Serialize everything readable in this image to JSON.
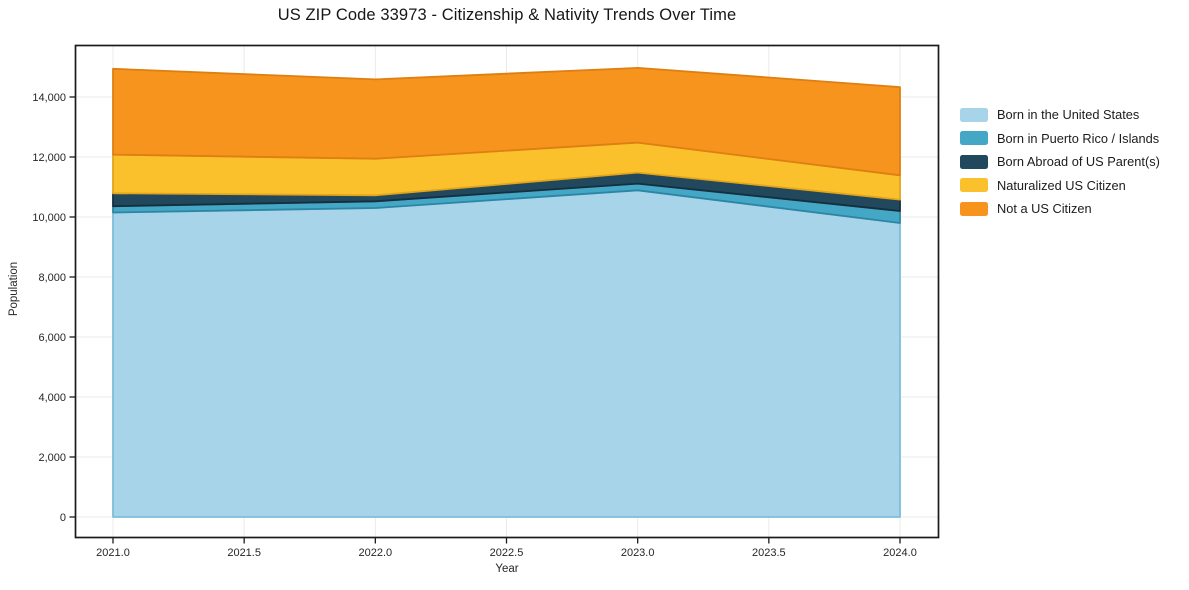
{
  "page": {
    "background": "#ffffff"
  },
  "chart_data": {
    "type": "area",
    "stacked": true,
    "title": "US ZIP Code 33973 - Citizenship & Nativity Trends Over Time",
    "xlabel": "Year",
    "ylabel": "Population",
    "x": [
      2021,
      2022,
      2023,
      2024
    ],
    "series": [
      {
        "name": "Born in the United States",
        "color": "#A7D4E9",
        "edge_color": "#7CBEDB",
        "values": [
          10150,
          10300,
          10890,
          9800
        ]
      },
      {
        "name": "Born in Puerto Rico / Islands",
        "color": "#44A7C6",
        "edge_color": "#2C86A3",
        "values": [
          210,
          225,
          225,
          400
        ]
      },
      {
        "name": "Born Abroad of US Parent(s)",
        "color": "#21485C",
        "edge_color": "#152F3D",
        "values": [
          430,
          200,
          365,
          380
        ]
      },
      {
        "name": "Naturalized US Citizen",
        "color": "#FBC12D",
        "edge_color": "#E2A51B",
        "values": [
          1290,
          1220,
          1000,
          810
        ]
      },
      {
        "name": "Not a US Citizen",
        "color": "#F7941E",
        "edge_color": "#DE7F12",
        "values": [
          2860,
          2640,
          2490,
          2940
        ]
      }
    ],
    "totals": [
      14940,
      14585,
      14970,
      14330
    ],
    "x_ticks": [
      2021.0,
      2021.5,
      2022.0,
      2022.5,
      2023.0,
      2023.5,
      2024.0
    ],
    "x_tick_labels": [
      "2021.0",
      "2021.5",
      "2022.0",
      "2022.5",
      "2023.0",
      "2023.5",
      "2024.0"
    ],
    "y_ticks": [
      0,
      2000,
      4000,
      6000,
      8000,
      10000,
      12000,
      14000
    ],
    "y_tick_labels": [
      "0",
      "2,000",
      "4,000",
      "6,000",
      "8,000",
      "10,000",
      "12,000",
      "14,000"
    ],
    "xlim": [
      2020.85,
      2024.15
    ],
    "ylim": [
      -700,
      15725
    ],
    "grid": true,
    "grid_color": "#ebebeb",
    "spine_color": "#1b1b1b",
    "tick_label_color": "#262626",
    "legend_position": "right-outside"
  }
}
